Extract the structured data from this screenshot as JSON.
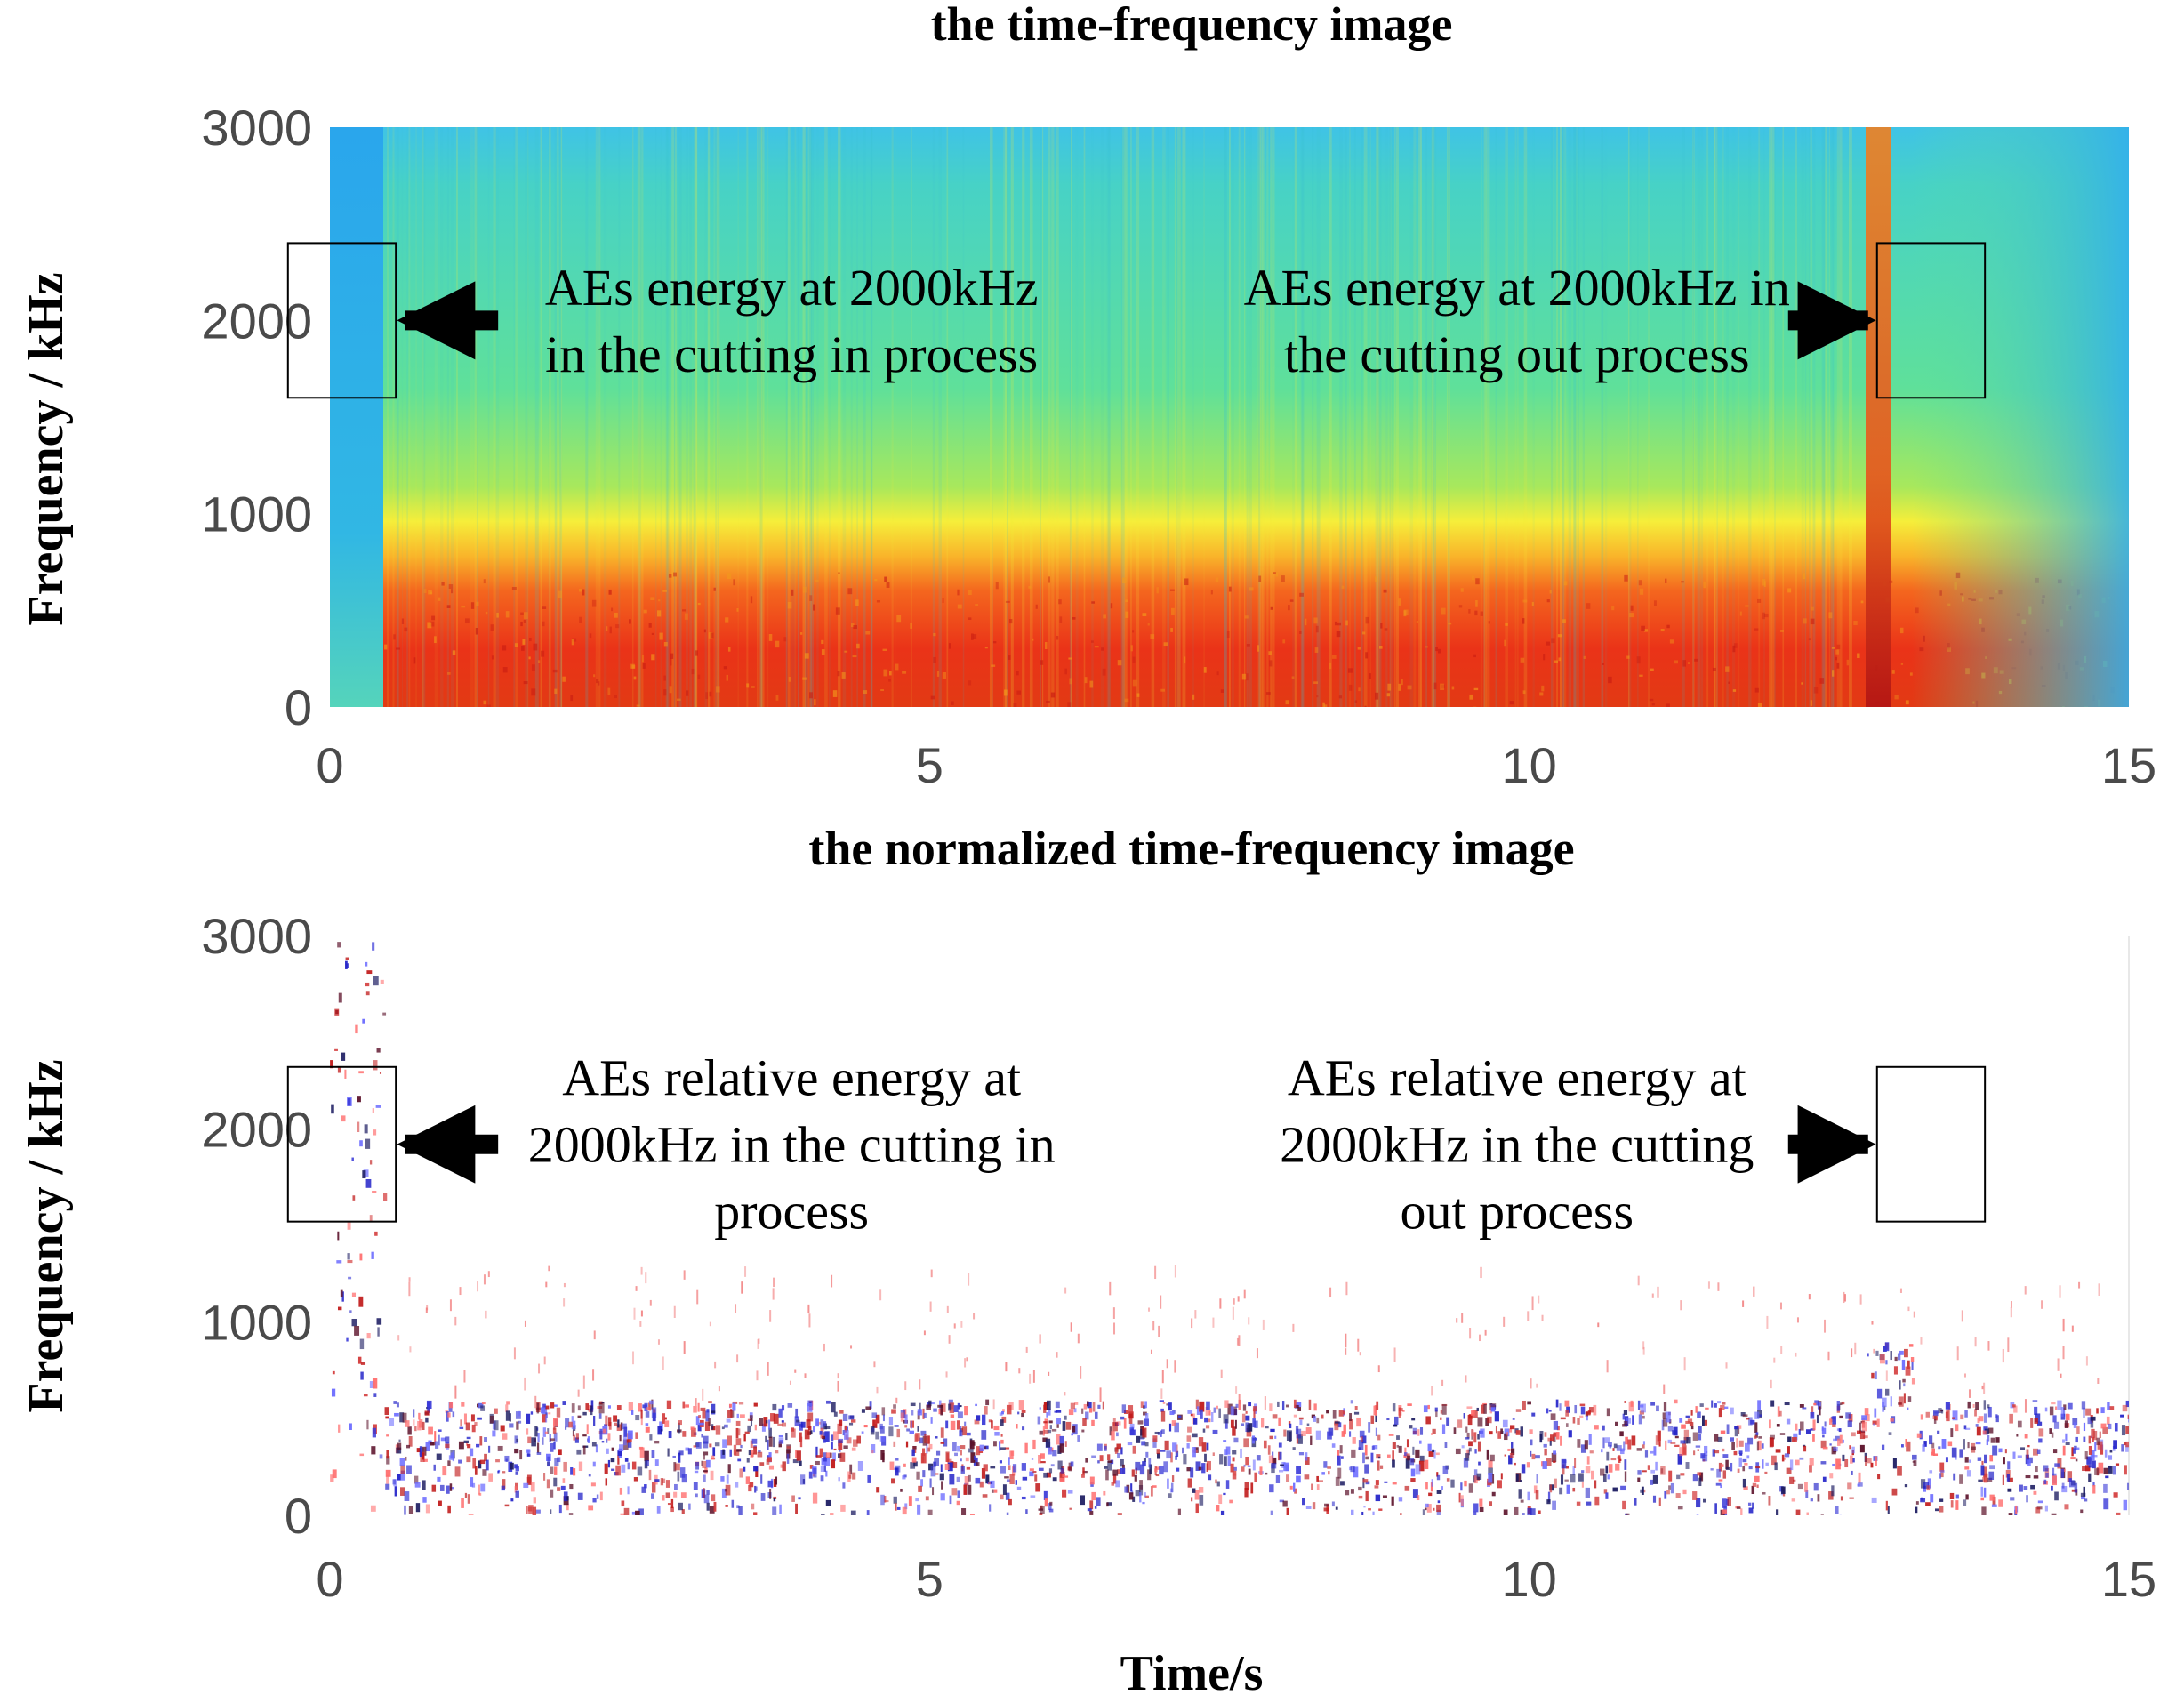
{
  "chart_data": [
    {
      "type": "heatmap",
      "title": "the time-frequency image",
      "xlabel": "",
      "ylabel": "Frequency / kHz",
      "xlim": [
        0,
        15
      ],
      "ylim": [
        0,
        3000
      ],
      "xticks": [
        "0",
        "5",
        "10",
        "15"
      ],
      "yticks": [
        "0",
        "1000",
        "2000",
        "3000"
      ],
      "colormap": "jet",
      "events": [
        {
          "name": "cutting in",
          "time_s": 0.45
        },
        {
          "name": "cutting out",
          "time_s": 12.9
        }
      ],
      "annotations": [
        {
          "lines": [
            "AEs energy at 2000kHz",
            "in the cutting in process"
          ],
          "arrow": "left",
          "box_time_s": [
            -0.35,
            0.55
          ],
          "box_freq_khz": [
            1600,
            2400
          ]
        },
        {
          "lines": [
            "AEs energy at 2000kHz in",
            "the cutting out process"
          ],
          "arrow": "right",
          "box_time_s": [
            12.9,
            13.8
          ],
          "box_freq_khz": [
            1600,
            2400
          ]
        }
      ]
    },
    {
      "type": "heatmap",
      "title": "the normalized time-frequency image",
      "xlabel": "Time/s",
      "ylabel": "Frequency / kHz",
      "xlim": [
        0,
        15
      ],
      "ylim": [
        0,
        3000
      ],
      "xticks": [
        "0",
        "5",
        "10",
        "15"
      ],
      "yticks": [
        "0",
        "1000",
        "2000",
        "3000"
      ],
      "colormap": "red-white-blue",
      "annotations": [
        {
          "lines": [
            "AEs relative energy at",
            "2000kHz in the cutting in",
            "process"
          ],
          "arrow": "left",
          "box_time_s": [
            -0.35,
            0.55
          ],
          "box_freq_khz": [
            1520,
            2320
          ]
        },
        {
          "lines": [
            "AEs relative energy at",
            "2000kHz in the cutting",
            "out process"
          ],
          "arrow": "right",
          "box_time_s": [
            12.9,
            13.8
          ],
          "box_freq_khz": [
            1520,
            2320
          ]
        }
      ]
    }
  ]
}
